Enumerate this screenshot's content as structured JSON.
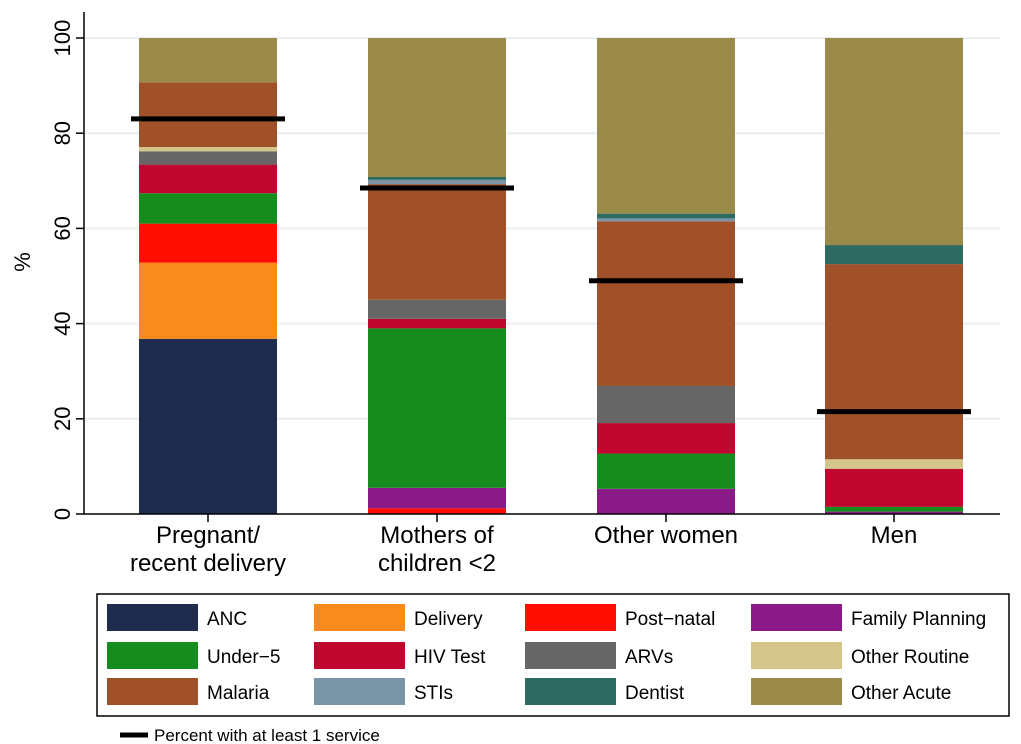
{
  "chart_data": {
    "type": "bar",
    "stacked": true,
    "ylabel": "%",
    "ylim": [
      0,
      100
    ],
    "yticks": [
      0,
      20,
      40,
      60,
      80,
      100
    ],
    "grid": true,
    "categories": [
      "Pregnant/\nrecent delivery",
      "Mothers of\nchildren <2",
      "Other women",
      "Men"
    ],
    "series": [
      {
        "name": "ANC",
        "color": "#1f2c4e",
        "values": [
          36.8,
          0,
          0,
          0
        ]
      },
      {
        "name": "Delivery",
        "color": "#f98a1e",
        "values": [
          16.0,
          0,
          0,
          0
        ]
      },
      {
        "name": "Post−natal",
        "color": "#ff0d00",
        "values": [
          8.2,
          1.2,
          0,
          0
        ]
      },
      {
        "name": "Family Planning",
        "color": "#8a1a87",
        "values": [
          0,
          4.3,
          5.3,
          0.5
        ]
      },
      {
        "name": "Under−5",
        "color": "#168c1e",
        "values": [
          6.4,
          33.5,
          7.4,
          1.0
        ]
      },
      {
        "name": "HIV Test",
        "color": "#c0062e",
        "values": [
          6.0,
          2.0,
          6.4,
          8.0
        ]
      },
      {
        "name": "ARVs",
        "color": "#666666",
        "values": [
          2.8,
          4.0,
          7.8,
          0
        ]
      },
      {
        "name": "Other Routine",
        "color": "#d4c58a",
        "values": [
          0.9,
          0,
          0,
          2.0
        ]
      },
      {
        "name": "Malaria",
        "color": "#a0512a",
        "values": [
          13.6,
          24.3,
          34.6,
          41.0
        ]
      },
      {
        "name": "STIs",
        "color": "#7a94a8",
        "values": [
          0,
          0.9,
          0.6,
          0
        ]
      },
      {
        "name": "Dentist",
        "color": "#2d6b62",
        "values": [
          0,
          0.6,
          1.0,
          4.0
        ]
      },
      {
        "name": "Other Acute",
        "color": "#9a8b4a",
        "values": [
          9.3,
          29.2,
          36.9,
          43.5
        ]
      }
    ],
    "markers": {
      "name": "Percent with at least 1 service",
      "color": "#000000",
      "values": [
        83.0,
        68.5,
        49.0,
        21.5
      ]
    },
    "legend": {
      "placement": "bottom",
      "columns": 4
    },
    "marker_legend_placement": "bottom-left"
  }
}
